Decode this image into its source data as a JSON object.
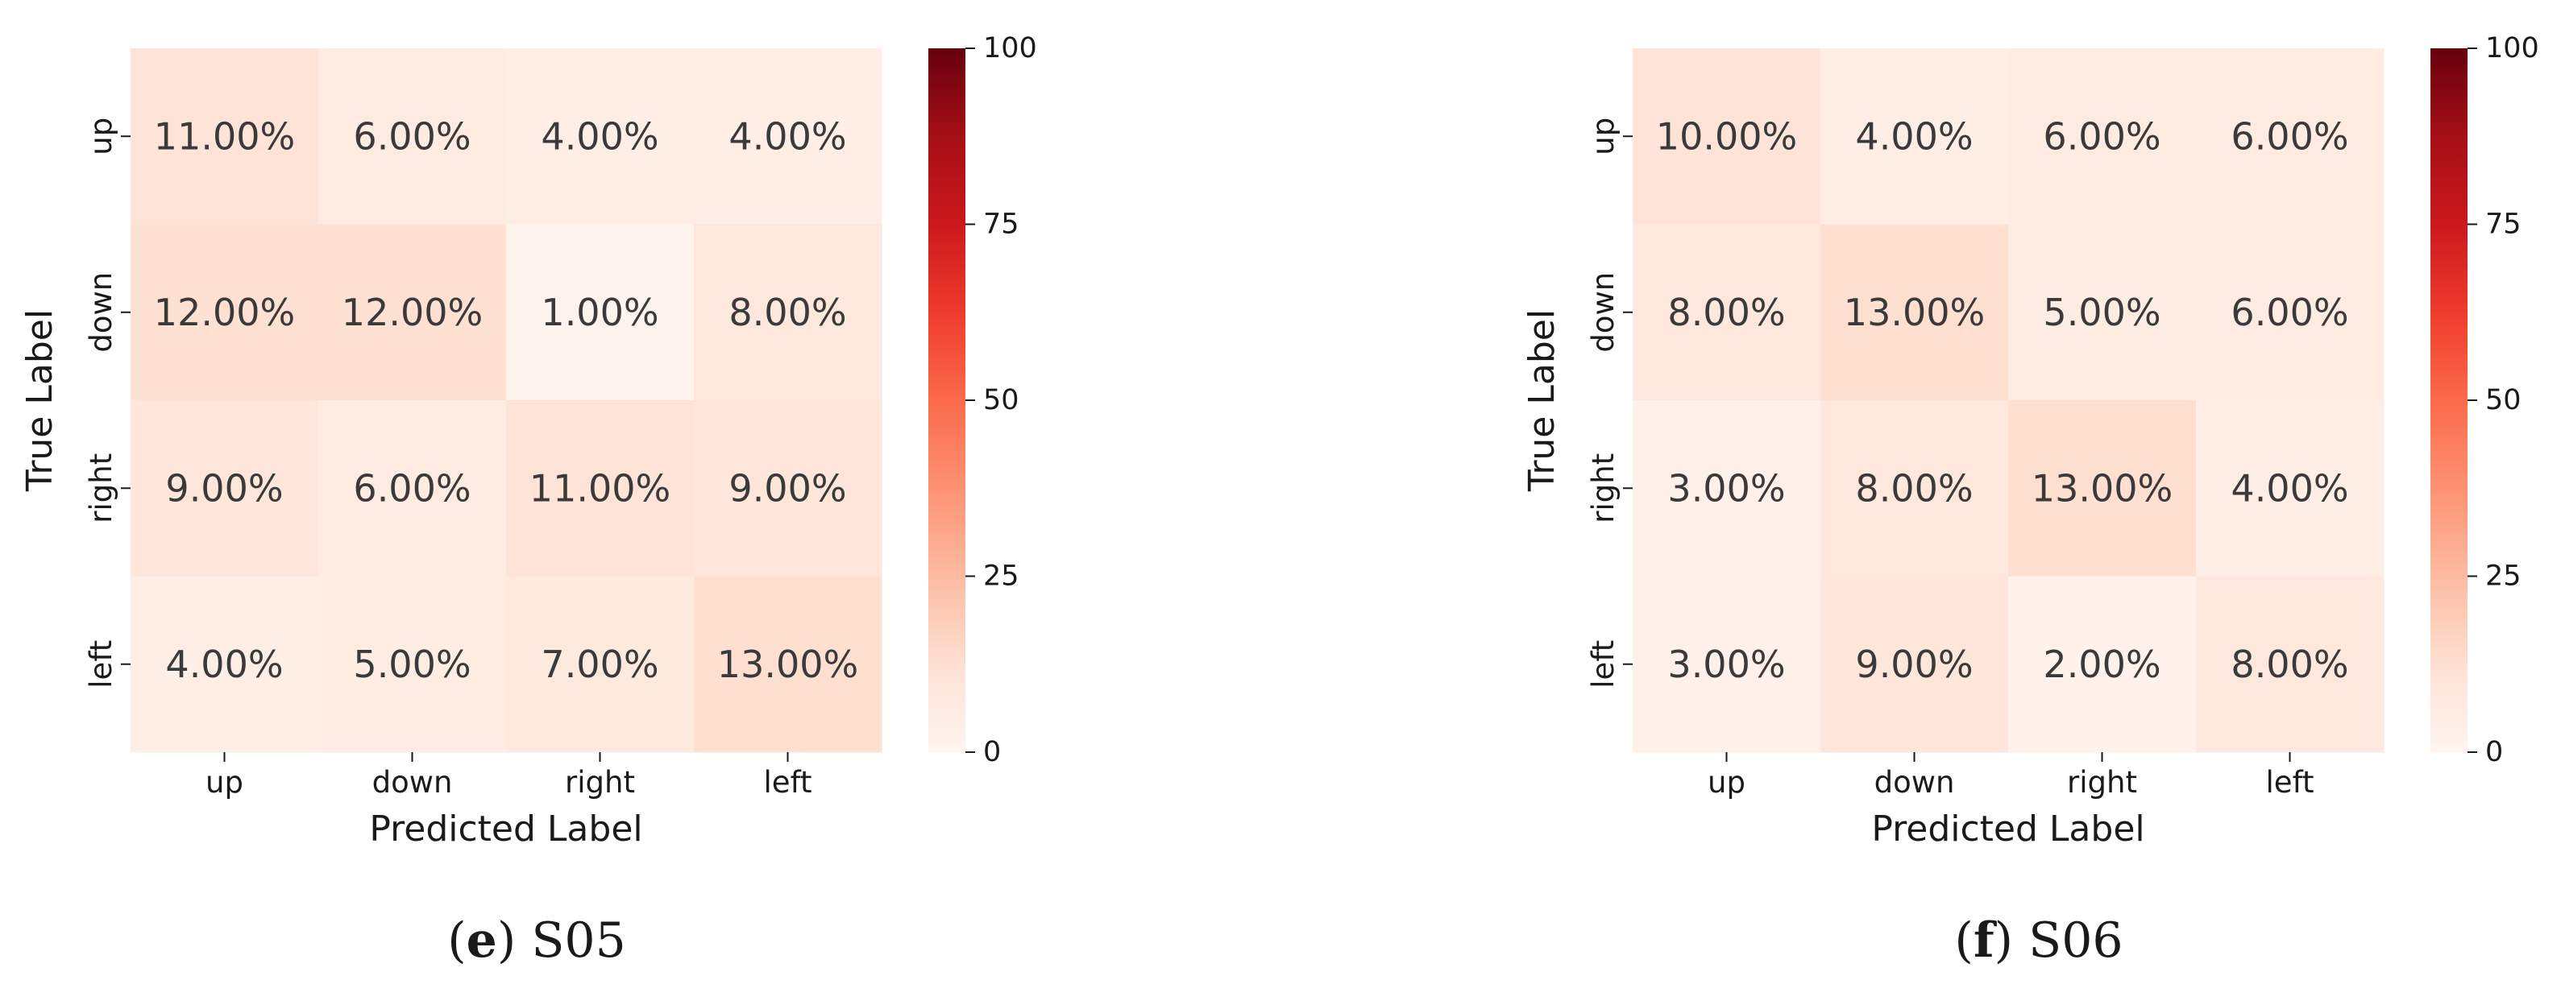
{
  "chart_data": [
    {
      "type": "heatmap",
      "caption": {
        "open": "(",
        "letter": "e",
        "close": ")",
        "name": "S05"
      },
      "xlabel": "Predicted Label",
      "ylabel": "True Label",
      "x_categories": [
        "up",
        "down",
        "right",
        "left"
      ],
      "y_categories": [
        "up",
        "down",
        "right",
        "left"
      ],
      "values": [
        [
          11,
          6,
          4,
          4
        ],
        [
          12,
          12,
          1,
          8
        ],
        [
          9,
          6,
          11,
          9
        ],
        [
          4,
          5,
          7,
          13
        ]
      ],
      "cell_labels": [
        [
          "11.00%",
          "6.00%",
          "4.00%",
          "4.00%"
        ],
        [
          "12.00%",
          "12.00%",
          "1.00%",
          "8.00%"
        ],
        [
          "9.00%",
          "6.00%",
          "11.00%",
          "9.00%"
        ],
        [
          "4.00%",
          "5.00%",
          "7.00%",
          "13.00%"
        ]
      ],
      "colorbar": {
        "min": 0,
        "max": 100,
        "ticks": [
          "0",
          "25",
          "50",
          "75",
          "100"
        ],
        "colormap": "Reds"
      }
    },
    {
      "type": "heatmap",
      "caption": {
        "open": "(",
        "letter": "f",
        "close": ")",
        "name": "S06"
      },
      "xlabel": "Predicted Label",
      "ylabel": "True Label",
      "x_categories": [
        "up",
        "down",
        "right",
        "left"
      ],
      "y_categories": [
        "up",
        "down",
        "right",
        "left"
      ],
      "values": [
        [
          10,
          4,
          6,
          6
        ],
        [
          8,
          13,
          5,
          6
        ],
        [
          3,
          8,
          13,
          4
        ],
        [
          3,
          9,
          2,
          8
        ]
      ],
      "cell_labels": [
        [
          "10.00%",
          "4.00%",
          "6.00%",
          "6.00%"
        ],
        [
          "8.00%",
          "13.00%",
          "5.00%",
          "6.00%"
        ],
        [
          "3.00%",
          "8.00%",
          "13.00%",
          "4.00%"
        ],
        [
          "3.00%",
          "9.00%",
          "2.00%",
          "8.00%"
        ]
      ],
      "colorbar": {
        "min": 0,
        "max": 100,
        "ticks": [
          "0",
          "25",
          "50",
          "75",
          "100"
        ],
        "colormap": "Reds"
      }
    }
  ]
}
